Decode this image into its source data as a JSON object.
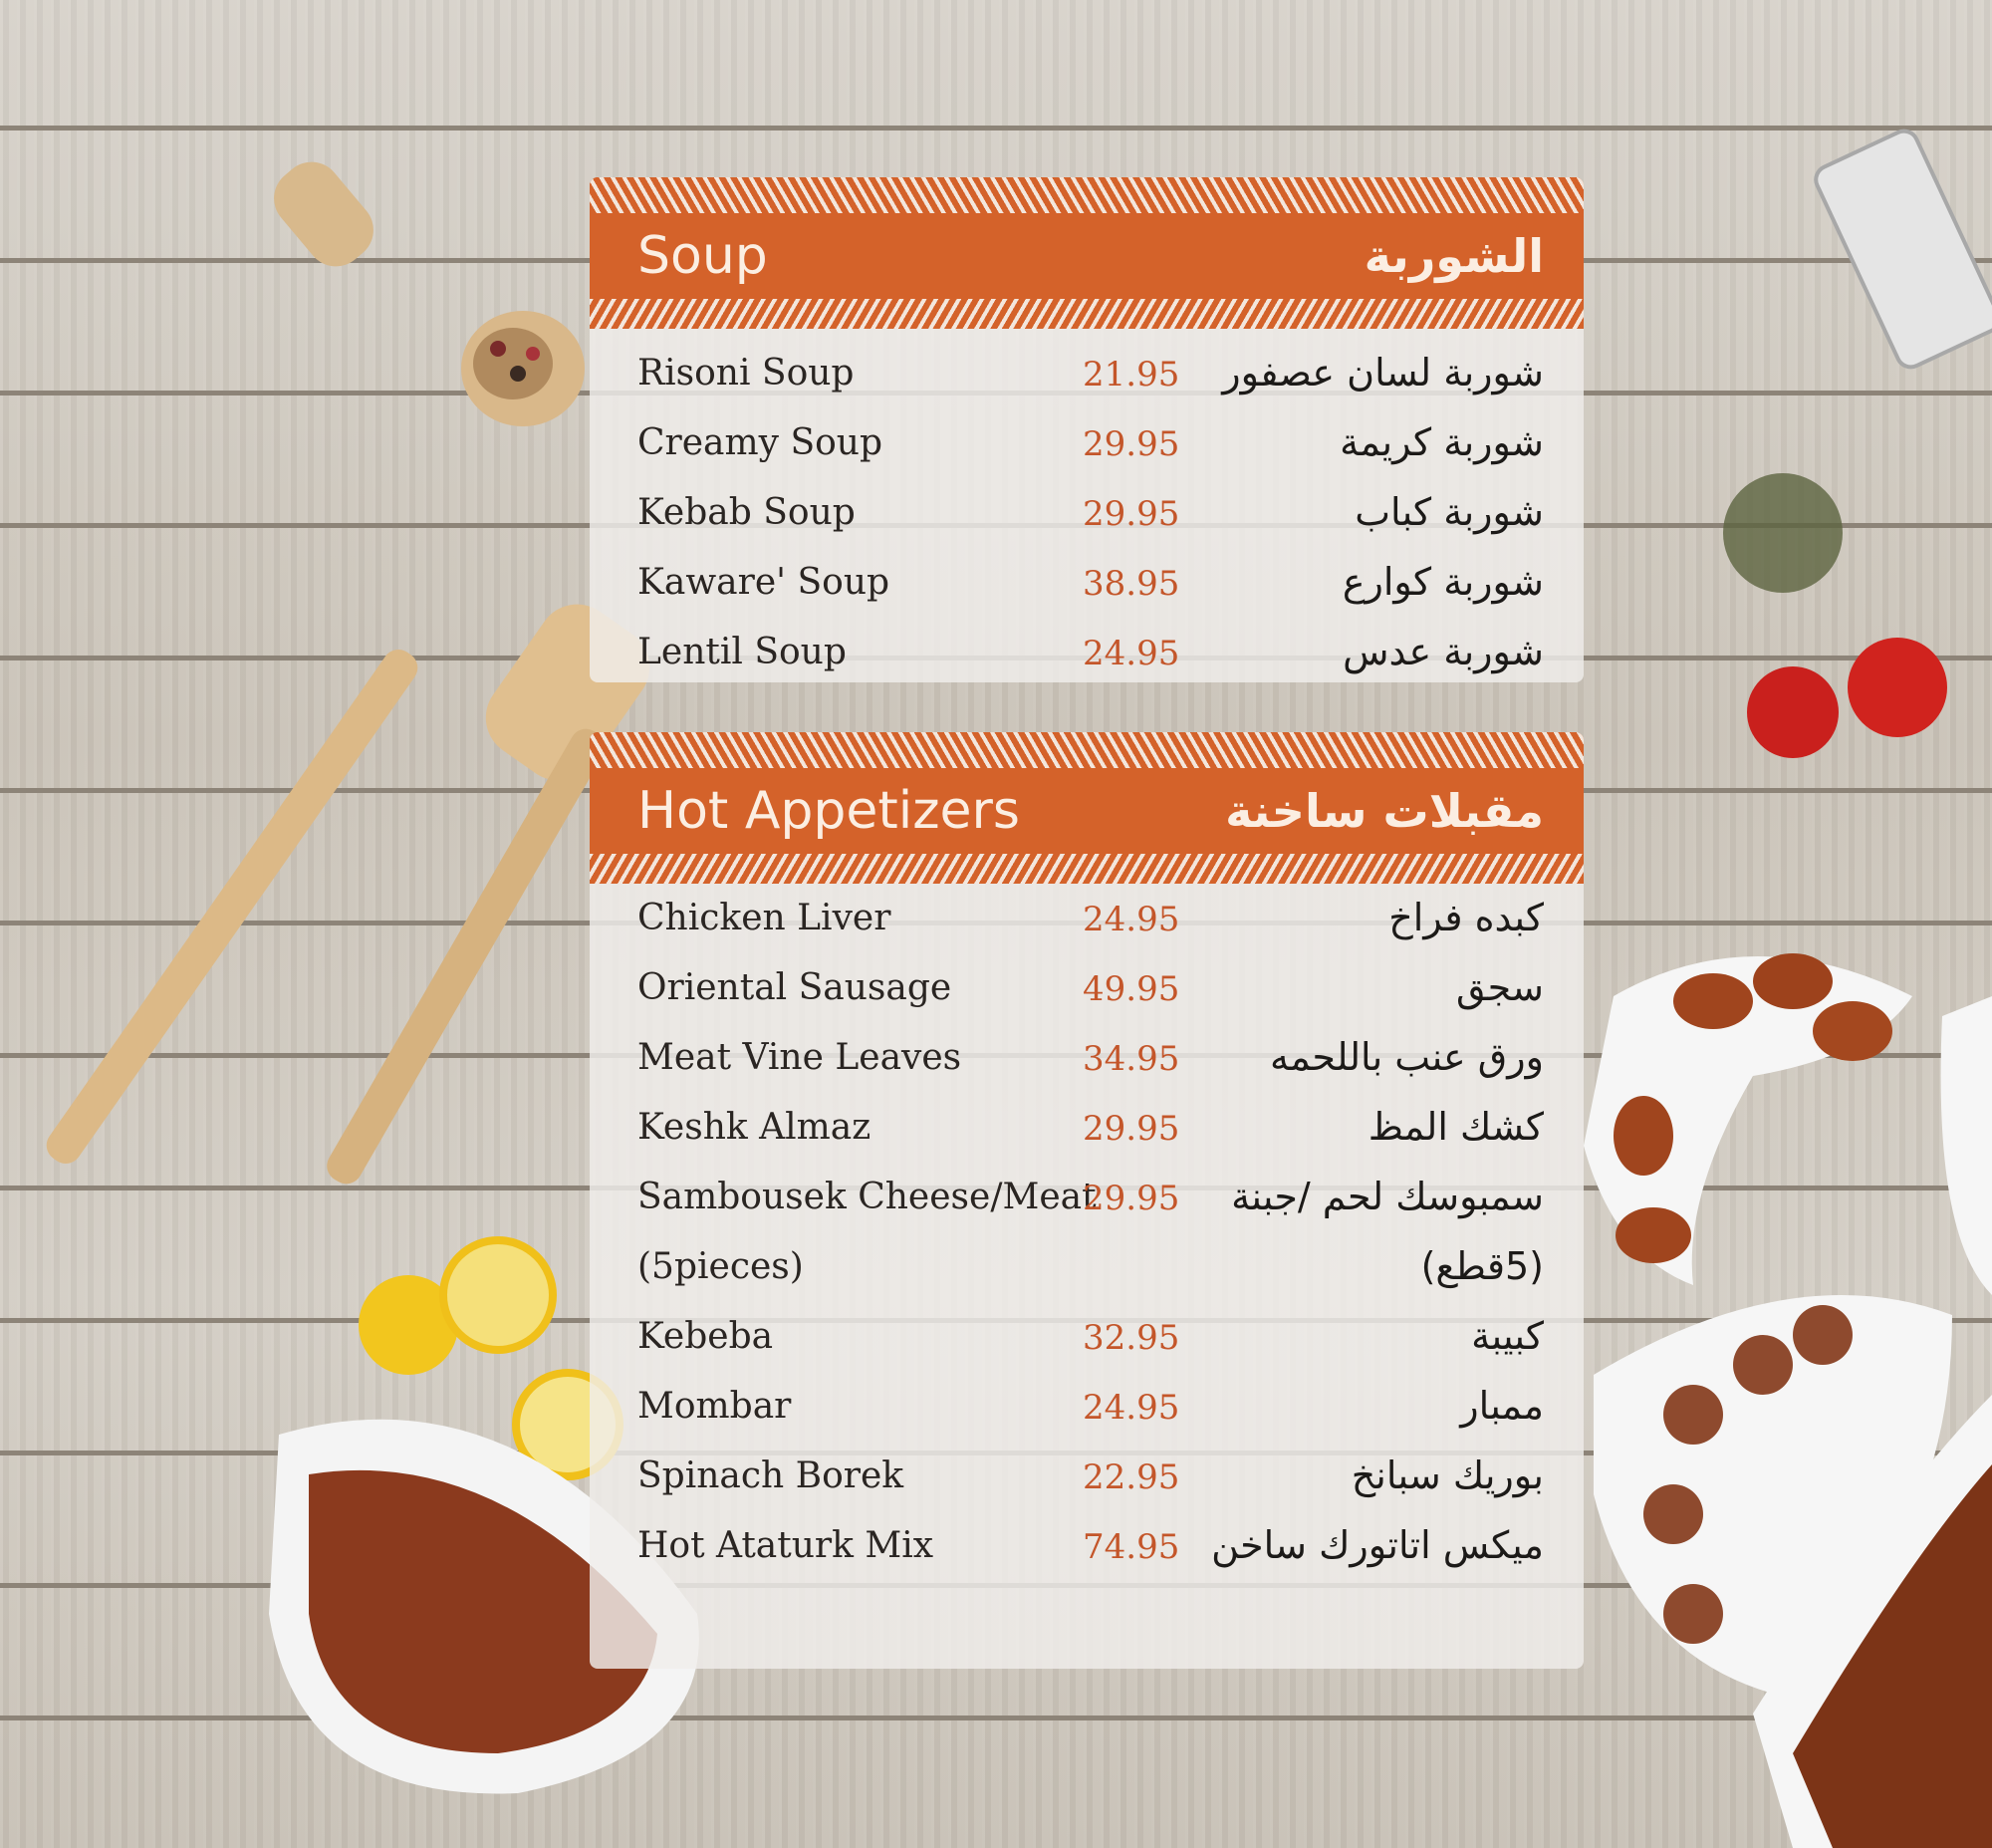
{
  "colors": {
    "accent": "#d4622a",
    "price": "#c4562a",
    "text": "#2a2522"
  },
  "sections": [
    {
      "title_en": "Soup",
      "title_ar": "الشوربة",
      "items": [
        {
          "name": "Risoni Soup",
          "price": "21.95",
          "ar": "شوربة لسان عصفور"
        },
        {
          "name": "Creamy Soup",
          "price": "29.95",
          "ar": "شوربة كريمة"
        },
        {
          "name": "Kebab Soup",
          "price": "29.95",
          "ar": "شوربة كباب"
        },
        {
          "name": "Kaware' Soup",
          "price": "38.95",
          "ar": "شوربة كوارع"
        },
        {
          "name": "Lentil Soup",
          "price": "24.95",
          "ar": "شوربة عدس"
        }
      ]
    },
    {
      "title_en": "Hot Appetizers",
      "title_ar": "مقبلات ساخنة",
      "items": [
        {
          "name": "Chicken Liver",
          "price": "24.95",
          "ar": "كبده فراخ"
        },
        {
          "name": "Oriental Sausage",
          "price": "49.95",
          "ar": "سجق"
        },
        {
          "name": "Meat Vine Leaves",
          "price": "34.95",
          "ar": "ورق عنب باللحمه"
        },
        {
          "name": "Keshk Almaz",
          "price": "29.95",
          "ar": "كشك المظ"
        },
        {
          "name": "Sambousek Cheese/Meat",
          "price": "29.95",
          "ar": "سمبوسك لحم /جبنة"
        },
        {
          "name": "(5pieces)",
          "price": "",
          "ar": "(5قطع)"
        },
        {
          "name": "Kebeba",
          "price": "32.95",
          "ar": "كبيبة"
        },
        {
          "name": "Mombar",
          "price": "24.95",
          "ar": "ممبار"
        },
        {
          "name": "Spinach Borek",
          "price": "22.95",
          "ar": "بوريك سبانخ"
        },
        {
          "name": "Hot Ataturk Mix",
          "price": "74.95",
          "ar": "ميكس اتاتورك ساخن"
        }
      ]
    }
  ]
}
